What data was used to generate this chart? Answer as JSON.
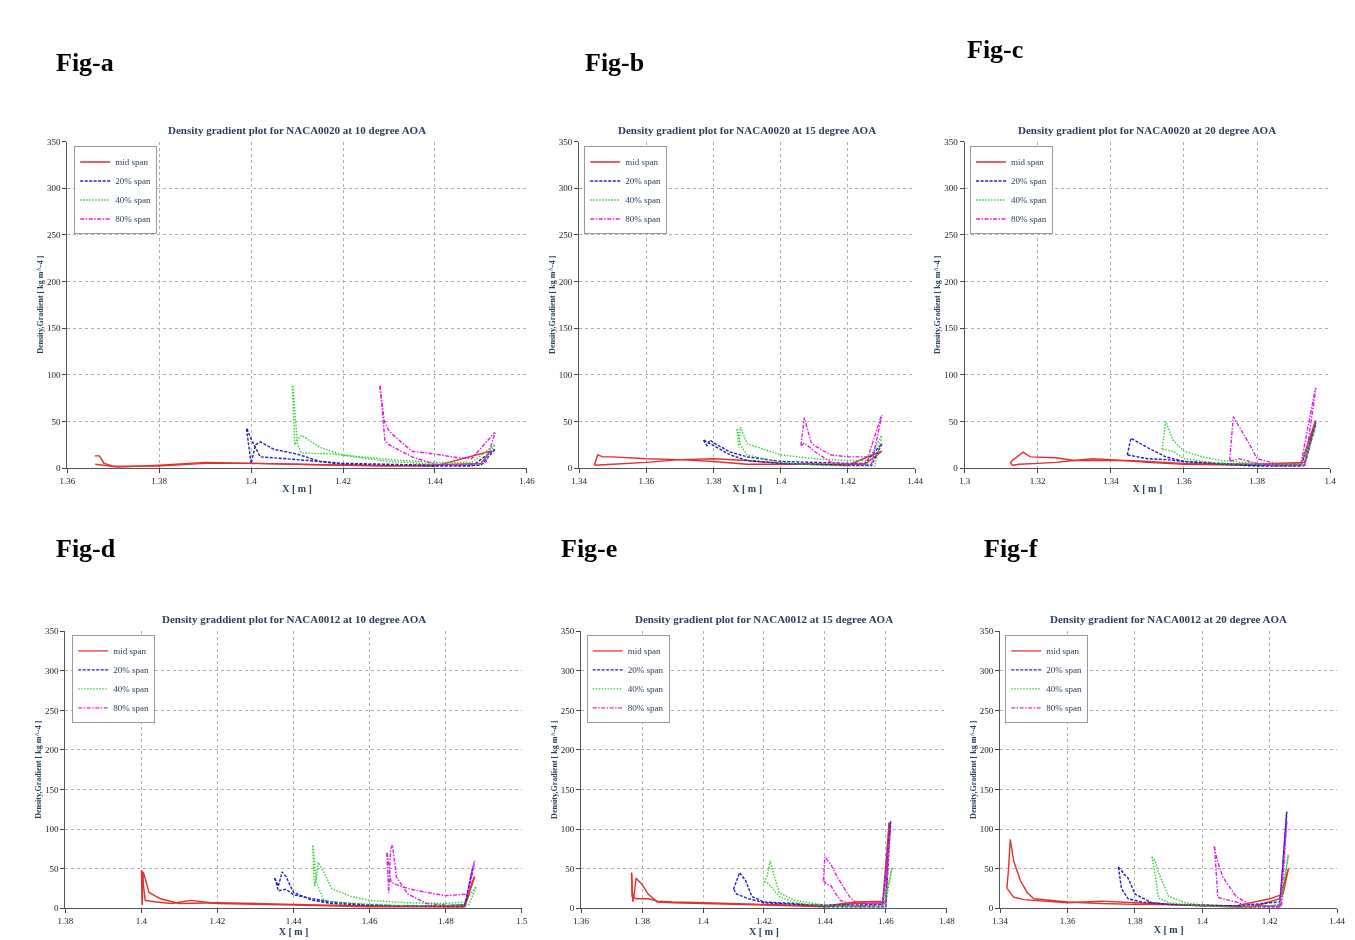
{
  "chart_data": [
    {
      "type": "line",
      "annotations": [
        "Fig-a"
      ],
      "title": "Density gradient plot for NACA0020 at 10 degree AOA",
      "xlabel": "X [ m ]",
      "ylabel": "Density,Gradient [ kg m^-4 ]",
      "xlim": [
        1.36,
        1.46
      ],
      "xticks": [
        1.36,
        1.38,
        1.4,
        1.42,
        1.44,
        1.46
      ],
      "ylim": [
        0,
        350
      ],
      "yticks": [
        0,
        50,
        100,
        150,
        200,
        250,
        300,
        350
      ],
      "grid": true,
      "legend": "top left",
      "series": [
        {
          "name": "mid span",
          "color": "#e03030",
          "line_style": "solid",
          "x": [
            1.366,
            1.367,
            1.368,
            1.37,
            1.38,
            1.39,
            1.4,
            1.42,
            1.44,
            1.452
          ],
          "values": [
            13,
            13,
            5,
            2,
            2,
            5,
            5,
            3,
            2,
            18
          ]
        },
        {
          "name": "20% span",
          "color": "#2020c0",
          "line_style": "dashed",
          "x": [
            1.399,
            1.4,
            1.401,
            1.402,
            1.405,
            1.41,
            1.415,
            1.42,
            1.44,
            1.448,
            1.453
          ],
          "values": [
            42,
            5,
            25,
            28,
            20,
            15,
            7,
            4,
            2,
            2,
            20
          ]
        },
        {
          "name": "40% span",
          "color": "#30d030",
          "line_style": "dotted",
          "x": [
            1.409,
            1.4095,
            1.41,
            1.411,
            1.415,
            1.42,
            1.43,
            1.44,
            1.448,
            1.453
          ],
          "values": [
            88,
            25,
            30,
            35,
            22,
            14,
            9,
            6,
            6,
            25
          ]
        },
        {
          "name": "80% span",
          "color": "#e020e0",
          "line_style": "dashdot",
          "x": [
            1.428,
            1.429,
            1.43,
            1.431,
            1.435,
            1.44,
            1.445,
            1.448,
            1.453
          ],
          "values": [
            88,
            50,
            40,
            35,
            18,
            15,
            11,
            10,
            38
          ]
        },
        {
          "color": "#e03030",
          "line_style": "solid",
          "x": [
            1.3661,
            1.371,
            1.38,
            1.39,
            1.41,
            1.43,
            1.45,
            1.4521
          ],
          "values": [
            4,
            1,
            3,
            6,
            4,
            2,
            5,
            18
          ]
        },
        {
          "color": "#2020c0",
          "line_style": "dashed",
          "x": [
            1.3991,
            1.4001,
            1.402,
            1.41,
            1.42,
            1.44,
            1.45,
            1.4531
          ],
          "values": [
            42,
            30,
            12,
            9,
            5,
            3,
            3,
            20
          ]
        },
        {
          "color": "#30d030",
          "line_style": "dotted",
          "x": [
            1.4091,
            1.4101,
            1.411,
            1.418,
            1.43,
            1.44,
            1.45,
            1.4531
          ],
          "values": [
            88,
            25,
            16,
            15,
            7,
            4,
            4,
            25
          ]
        },
        {
          "color": "#e020e0",
          "line_style": "dashdot",
          "x": [
            1.4281,
            1.4291,
            1.43,
            1.435,
            1.44,
            1.445,
            1.451,
            1.4531
          ],
          "values": [
            88,
            30,
            25,
            12,
            4,
            3,
            5,
            38
          ]
        }
      ]
    },
    {
      "type": "line",
      "annotations": [
        "Fig-b"
      ],
      "title": "Density gradient plot for NACA0020 at 15 degree AOA",
      "xlabel": "X [ m ]",
      "ylabel": "Density,Gradient [ kg m^-4 ]",
      "xlim": [
        1.34,
        1.44
      ],
      "xticks": [
        1.34,
        1.36,
        1.38,
        1.4,
        1.42,
        1.44
      ],
      "ylim": [
        0,
        350
      ],
      "yticks": [
        0,
        50,
        100,
        150,
        200,
        250,
        300,
        350
      ],
      "grid": true,
      "legend": "top left",
      "series": [
        {
          "name": "mid span",
          "color": "#e03030",
          "line_style": "solid",
          "x": [
            1.3445,
            1.3455,
            1.347,
            1.35,
            1.36,
            1.37,
            1.38,
            1.39,
            1.4,
            1.42,
            1.43
          ],
          "values": [
            3,
            14,
            12,
            12,
            10,
            9,
            10,
            8,
            5,
            3,
            18
          ]
        },
        {
          "name": "20% span",
          "color": "#2020c0",
          "line_style": "dashed",
          "x": [
            1.377,
            1.378,
            1.379,
            1.38,
            1.385,
            1.39,
            1.4,
            1.42,
            1.425,
            1.43
          ],
          "values": [
            30,
            24,
            30,
            27,
            17,
            12,
            7,
            5,
            5,
            26
          ]
        },
        {
          "name": "40% span",
          "color": "#30d030",
          "line_style": "dotted",
          "x": [
            1.387,
            1.3875,
            1.388,
            1.39,
            1.395,
            1.4,
            1.41,
            1.42,
            1.426,
            1.43
          ],
          "values": [
            42,
            22,
            44,
            26,
            20,
            14,
            10,
            8,
            8,
            35
          ]
        },
        {
          "name": "80% span",
          "color": "#e020e0",
          "line_style": "dashdot",
          "x": [
            1.406,
            1.407,
            1.409,
            1.41,
            1.415,
            1.42,
            1.426,
            1.43
          ],
          "values": [
            24,
            54,
            28,
            24,
            14,
            12,
            12,
            57
          ]
        },
        {
          "color": "#e03030",
          "line_style": "solid",
          "x": [
            1.3446,
            1.35,
            1.36,
            1.37,
            1.38,
            1.39,
            1.41,
            1.425,
            1.4301
          ],
          "values": [
            3,
            4,
            6,
            9,
            7,
            4,
            4,
            4,
            18
          ]
        },
        {
          "color": "#2020c0",
          "line_style": "dashed",
          "x": [
            1.3771,
            1.38,
            1.385,
            1.39,
            1.4,
            1.42,
            1.427,
            1.4301
          ],
          "values": [
            30,
            24,
            14,
            8,
            5,
            3,
            3,
            26
          ]
        },
        {
          "color": "#30d030",
          "line_style": "dotted",
          "x": [
            1.3871,
            1.388,
            1.39,
            1.4,
            1.41,
            1.42,
            1.428,
            1.4301
          ],
          "values": [
            42,
            25,
            14,
            6,
            3,
            2,
            2,
            35
          ]
        },
        {
          "color": "#e020e0",
          "line_style": "dashdot",
          "x": [
            1.4061,
            1.407,
            1.41,
            1.415,
            1.42,
            1.427,
            1.4301
          ],
          "values": [
            24,
            27,
            18,
            6,
            4,
            4,
            57
          ]
        }
      ]
    },
    {
      "type": "line",
      "annotations": [
        "Fig-c"
      ],
      "title": "Density gradient plot for NACA0020 at 20 degree AOA",
      "xlabel": "X [ m ]",
      "ylabel": "Density,Gradient [ kg m^-4 ]",
      "xlim": [
        1.3,
        1.4
      ],
      "xticks": [
        1.3,
        1.32,
        1.34,
        1.36,
        1.38,
        1.4
      ],
      "ylim": [
        0,
        350
      ],
      "yticks": [
        0,
        50,
        100,
        150,
        200,
        250,
        300,
        350
      ],
      "grid": true,
      "legend": "top left",
      "series": [
        {
          "name": "mid span",
          "color": "#e03030",
          "line_style": "solid",
          "x": [
            1.3125,
            1.313,
            1.316,
            1.318,
            1.325,
            1.33,
            1.335,
            1.34,
            1.35,
            1.36,
            1.38,
            1.392,
            1.396
          ],
          "values": [
            5,
            8,
            17,
            12,
            11,
            8,
            10,
            9,
            6,
            4,
            3,
            4,
            51
          ]
        },
        {
          "name": "20% span",
          "color": "#2020c0",
          "line_style": "dashed",
          "x": [
            1.3445,
            1.3455,
            1.35,
            1.355,
            1.36,
            1.37,
            1.38,
            1.392,
            1.396
          ],
          "values": [
            14,
            32,
            22,
            12,
            7,
            4,
            2,
            2,
            48
          ]
        },
        {
          "name": "40% span",
          "color": "#30d030",
          "line_style": "dotted",
          "x": [
            1.354,
            1.355,
            1.357,
            1.36,
            1.365,
            1.37,
            1.38,
            1.392,
            1.396
          ],
          "values": [
            20,
            50,
            30,
            18,
            12,
            8,
            5,
            4,
            45
          ]
        },
        {
          "name": "80% span",
          "color": "#e020e0",
          "line_style": "dashdot",
          "x": [
            1.3725,
            1.3735,
            1.375,
            1.378,
            1.38,
            1.385,
            1.392,
            1.396
          ],
          "values": [
            8,
            55,
            45,
            25,
            10,
            5,
            5,
            86
          ]
        },
        {
          "color": "#e03030",
          "line_style": "solid",
          "x": [
            1.3126,
            1.3131,
            1.315,
            1.32,
            1.325,
            1.33,
            1.345,
            1.36,
            1.38,
            1.393,
            1.3961
          ],
          "values": [
            5,
            3,
            4,
            5,
            6,
            8,
            8,
            5,
            4,
            6,
            51
          ]
        },
        {
          "color": "#2020c0",
          "line_style": "dashed",
          "x": [
            1.3446,
            1.35,
            1.355,
            1.36,
            1.37,
            1.38,
            1.393,
            1.3961
          ],
          "values": [
            14,
            10,
            9,
            7,
            5,
            3,
            3,
            48
          ]
        },
        {
          "color": "#30d030",
          "line_style": "dotted",
          "x": [
            1.3541,
            1.357,
            1.36,
            1.37,
            1.38,
            1.393,
            1.3961
          ],
          "values": [
            20,
            18,
            10,
            5,
            4,
            4,
            45
          ]
        },
        {
          "color": "#e020e0",
          "line_style": "dashdot",
          "x": [
            1.3726,
            1.3736,
            1.375,
            1.38,
            1.385,
            1.393,
            1.3961
          ],
          "values": [
            8,
            8,
            10,
            5,
            2,
            2,
            86
          ]
        }
      ]
    },
    {
      "type": "line",
      "annotations": [
        "Fig-d"
      ],
      "title": "Density graddient plot for NACA0012 at 10 degree AOA",
      "xlabel": "X [ m ]",
      "ylabel": "Density,Gradient [ kg m^-4 ]",
      "xlim": [
        1.38,
        1.5
      ],
      "xticks": [
        1.38,
        1.4,
        1.42,
        1.44,
        1.46,
        1.48,
        1.5
      ],
      "ylim": [
        0,
        350
      ],
      "yticks": [
        0,
        50,
        100,
        150,
        200,
        250,
        300,
        350
      ],
      "grid": true,
      "legend": "top left",
      "series": [
        {
          "name": "mid span",
          "color": "#e03030",
          "line_style": "solid",
          "x": [
            1.4,
            1.4002,
            1.4005,
            1.402,
            1.405,
            1.41,
            1.42,
            1.44,
            1.46,
            1.48,
            1.485,
            1.4875
          ],
          "values": [
            48,
            4,
            46,
            20,
            12,
            6,
            7,
            5,
            3,
            3,
            5,
            40
          ]
        },
        {
          "name": "20% span",
          "color": "#2020c0",
          "line_style": "dashed",
          "x": [
            1.435,
            1.436,
            1.437,
            1.438,
            1.44,
            1.445,
            1.45,
            1.46,
            1.48,
            1.485,
            1.487
          ],
          "values": [
            38,
            28,
            46,
            40,
            20,
            10,
            6,
            4,
            2,
            2,
            50
          ]
        },
        {
          "name": "40% span",
          "color": "#30d030",
          "line_style": "dotted",
          "x": [
            1.445,
            1.4455,
            1.446,
            1.4465,
            1.448,
            1.45,
            1.455,
            1.46,
            1.47,
            1.48,
            1.485,
            1.488
          ],
          "values": [
            79,
            28,
            40,
            58,
            45,
            25,
            15,
            10,
            7,
            6,
            8,
            28
          ]
        },
        {
          "name": "80% span",
          "color": "#e020e0",
          "line_style": "dashdot",
          "x": [
            1.4645,
            1.465,
            1.4655,
            1.466,
            1.467,
            1.47,
            1.475,
            1.48,
            1.485,
            1.4875
          ],
          "values": [
            70,
            19,
            75,
            80,
            40,
            18,
            6,
            4,
            4,
            60
          ]
        },
        {
          "color": "#e03030",
          "line_style": "solid",
          "x": [
            1.4001,
            1.401,
            1.404,
            1.408,
            1.413,
            1.42,
            1.44,
            1.46,
            1.47,
            1.485,
            1.4876
          ],
          "values": [
            48,
            10,
            8,
            6,
            10,
            6,
            4,
            2,
            2,
            2,
            40
          ]
        },
        {
          "color": "#2020c0",
          "line_style": "dashed",
          "x": [
            1.4351,
            1.436,
            1.438,
            1.44,
            1.445,
            1.45,
            1.46,
            1.47,
            1.485,
            1.4871
          ],
          "values": [
            38,
            22,
            24,
            17,
            12,
            8,
            4,
            3,
            3,
            50
          ]
        },
        {
          "color": "#30d030",
          "line_style": "dotted",
          "x": [
            1.4451,
            1.446,
            1.448,
            1.45,
            1.46,
            1.47,
            1.486,
            1.4881
          ],
          "values": [
            79,
            32,
            10,
            8,
            5,
            3,
            4,
            28
          ]
        },
        {
          "color": "#e020e0",
          "line_style": "dashdot",
          "x": [
            1.4646,
            1.4656,
            1.467,
            1.47,
            1.475,
            1.48,
            1.486,
            1.4876
          ],
          "values": [
            70,
            33,
            30,
            25,
            20,
            16,
            18,
            60
          ]
        }
      ]
    },
    {
      "type": "line",
      "annotations": [
        "Fig-e"
      ],
      "title": "Density gradient plot for NACA0012 at 15 degree AOA",
      "xlabel": "X [ m ]",
      "ylabel": "Density,Gradient [ kg m^-4 ]",
      "xlim": [
        1.36,
        1.48
      ],
      "xticks": [
        1.36,
        1.38,
        1.4,
        1.42,
        1.44,
        1.46,
        1.48
      ],
      "ylim": [
        0,
        350
      ],
      "yticks": [
        0,
        50,
        100,
        150,
        200,
        250,
        300,
        350
      ],
      "grid": true,
      "legend": "top left",
      "series": [
        {
          "name": "mid span",
          "color": "#e03030",
          "line_style": "solid",
          "x": [
            1.3765,
            1.377,
            1.3775,
            1.378,
            1.38,
            1.382,
            1.385,
            1.39,
            1.4,
            1.41,
            1.42,
            1.44,
            1.45,
            1.46,
            1.461
          ],
          "values": [
            45,
            8,
            20,
            38,
            30,
            18,
            8,
            7,
            6,
            5,
            4,
            2,
            6,
            7,
            108
          ]
        },
        {
          "name": "20% span",
          "color": "#2020c0",
          "line_style": "dashed",
          "x": [
            1.41,
            1.412,
            1.414,
            1.416,
            1.42,
            1.43,
            1.44,
            1.45,
            1.46,
            1.4615
          ],
          "values": [
            24,
            45,
            35,
            15,
            8,
            6,
            2,
            2,
            2,
            110
          ]
        },
        {
          "name": "40% span",
          "color": "#30d030",
          "line_style": "dotted",
          "x": [
            1.42,
            1.421,
            1.422,
            1.423,
            1.425,
            1.43,
            1.44,
            1.45,
            1.46,
            1.462
          ],
          "values": [
            33,
            40,
            60,
            45,
            20,
            10,
            4,
            3,
            6,
            52
          ]
        },
        {
          "name": "80% span",
          "color": "#e020e0",
          "line_style": "dashdot",
          "x": [
            1.4395,
            1.44,
            1.442,
            1.444,
            1.448,
            1.45,
            1.455,
            1.46,
            1.4615
          ],
          "values": [
            35,
            65,
            55,
            40,
            15,
            8,
            6,
            8,
            105
          ]
        },
        {
          "color": "#e03030",
          "line_style": "solid",
          "x": [
            1.3766,
            1.3767,
            1.378,
            1.382,
            1.385,
            1.39,
            1.4,
            1.42,
            1.44,
            1.45,
            1.459,
            1.4611
          ],
          "values": [
            45,
            15,
            12,
            12,
            9,
            8,
            7,
            5,
            3,
            8,
            9,
            108
          ]
        },
        {
          "color": "#2020c0",
          "line_style": "dashed",
          "x": [
            1.4101,
            1.411,
            1.415,
            1.42,
            1.43,
            1.44,
            1.45,
            1.459,
            1.4616
          ],
          "values": [
            24,
            18,
            12,
            7,
            5,
            4,
            4,
            5,
            110
          ]
        },
        {
          "color": "#30d030",
          "line_style": "dotted",
          "x": [
            1.4201,
            1.421,
            1.425,
            1.43,
            1.44,
            1.45,
            1.459,
            1.4621
          ],
          "values": [
            33,
            33,
            15,
            7,
            3,
            2,
            2,
            52
          ]
        },
        {
          "color": "#e020e0",
          "line_style": "dashdot",
          "x": [
            1.4396,
            1.4401,
            1.442,
            1.445,
            1.45,
            1.459,
            1.4616
          ],
          "values": [
            35,
            32,
            28,
            10,
            3,
            4,
            105
          ]
        }
      ]
    },
    {
      "type": "line",
      "annotations": [
        "Fig-f"
      ],
      "title": "Density gradient for NACA0012 at 20 degree AOA",
      "xlabel": "X [ m ]",
      "ylabel": "Density,Gradient [ kg m^-4 ]",
      "xlim": [
        1.34,
        1.44
      ],
      "xticks": [
        1.34,
        1.36,
        1.38,
        1.4,
        1.42,
        1.44
      ],
      "ylim": [
        0,
        350
      ],
      "yticks": [
        0,
        50,
        100,
        150,
        200,
        250,
        300,
        350
      ],
      "grid": true,
      "legend": "top left",
      "series": [
        {
          "name": "mid span",
          "color": "#e03030",
          "line_style": "solid",
          "x": [
            1.342,
            1.3425,
            1.343,
            1.344,
            1.346,
            1.348,
            1.35,
            1.36,
            1.37,
            1.38,
            1.4,
            1.41,
            1.42,
            1.424,
            1.4255
          ],
          "values": [
            25,
            50,
            87,
            60,
            35,
            20,
            12,
            8,
            6,
            5,
            4,
            3,
            12,
            18,
            50
          ]
        },
        {
          "name": "20% span",
          "color": "#2020c0",
          "line_style": "dashed",
          "x": [
            1.375,
            1.376,
            1.377,
            1.378,
            1.38,
            1.385,
            1.39,
            1.4,
            1.41,
            1.423,
            1.425
          ],
          "values": [
            52,
            48,
            42,
            38,
            18,
            7,
            5,
            3,
            2,
            2,
            122
          ]
        },
        {
          "name": "40% span",
          "color": "#30d030",
          "line_style": "dotted",
          "x": [
            1.385,
            1.386,
            1.387,
            1.388,
            1.39,
            1.395,
            1.4,
            1.41,
            1.42,
            1.4235,
            1.4255
          ],
          "values": [
            65,
            60,
            45,
            35,
            15,
            7,
            4,
            2,
            3,
            5,
            68
          ]
        },
        {
          "name": "80% span",
          "color": "#e020e0",
          "line_style": "dashdot",
          "x": [
            1.4035,
            1.4045,
            1.406,
            1.41,
            1.414,
            1.42,
            1.4235,
            1.425
          ],
          "values": [
            78,
            60,
            40,
            15,
            5,
            3,
            4,
            110
          ]
        },
        {
          "color": "#e03030",
          "line_style": "solid",
          "x": [
            1.3421,
            1.3426,
            1.344,
            1.347,
            1.35,
            1.36,
            1.37,
            1.38,
            1.4,
            1.415,
            1.423,
            1.4256
          ],
          "values": [
            25,
            22,
            14,
            11,
            10,
            7,
            9,
            7,
            3,
            2,
            12,
            50
          ]
        },
        {
          "color": "#2020c0",
          "line_style": "dashed",
          "x": [
            1.3751,
            1.376,
            1.378,
            1.382,
            1.39,
            1.4,
            1.41,
            1.423,
            1.4251
          ],
          "values": [
            52,
            25,
            12,
            8,
            5,
            4,
            3,
            8,
            122
          ]
        },
        {
          "color": "#30d030",
          "line_style": "dotted",
          "x": [
            1.3851,
            1.3861,
            1.387,
            1.39,
            1.4,
            1.41,
            1.423,
            1.4256
          ],
          "values": [
            65,
            40,
            13,
            7,
            3,
            1,
            4,
            68
          ]
        },
        {
          "color": "#e020e0",
          "line_style": "dashdot",
          "x": [
            1.4036,
            1.4046,
            1.406,
            1.41,
            1.414,
            1.418,
            1.423,
            1.4251
          ],
          "values": [
            78,
            14,
            12,
            8,
            3,
            3,
            2,
            110
          ]
        }
      ]
    }
  ]
}
